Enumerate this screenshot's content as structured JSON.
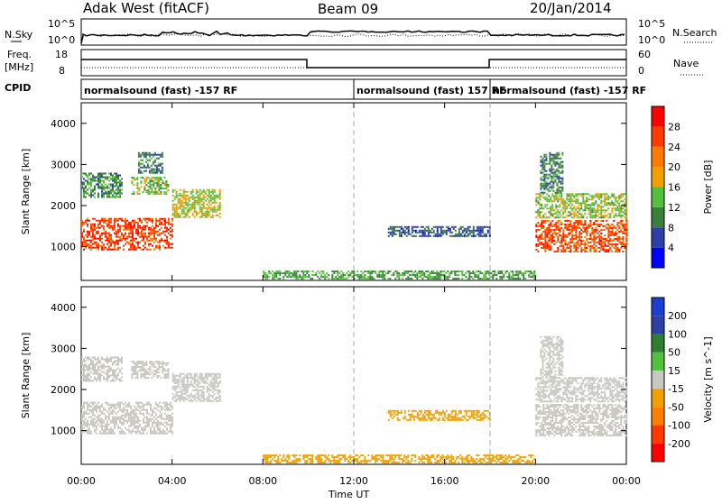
{
  "header": {
    "radar": "Adak West (fitACF)",
    "beam": "Beam 09",
    "date": "20/Jan/2014"
  },
  "top_panels": {
    "nsky_label": "N.Sky",
    "nsearch_label": "N.Search",
    "freq_label_1": "Freq.",
    "freq_label_2": "[MHz]",
    "nave_label": "Nave",
    "cpid_label": "CPID",
    "nsky_ticks": [
      "10^5",
      "10^0"
    ],
    "freq_ticks": [
      "18",
      "8"
    ],
    "nave_ticks": [
      "60",
      "0"
    ]
  },
  "cpid_segments": [
    {
      "label": "normalsound (fast) -157 RF",
      "start_hour": 0
    },
    {
      "label": "normalsound (fast) 157 RF",
      "start_hour": 12
    },
    {
      "label": "normalsound (fast) -157 RF",
      "start_hour": 18
    }
  ],
  "colors": {
    "power_scale": [
      "#0000ff",
      "#2e3fa8",
      "#3a7f3a",
      "#53c13d",
      "#f0a000",
      "#ff7a00",
      "#ff3a00",
      "#ff0000"
    ],
    "velocity_scale": [
      "#ff0000",
      "#ff3a00",
      "#ff8000",
      "#f0a000",
      "#c8c8c0",
      "#53c13d",
      "#2e7f30",
      "#2e3fa8",
      "#1a3fd0"
    ],
    "ground_scatter": "#c8c8c0"
  },
  "chart_data": [
    {
      "type": "heatmap",
      "name": "power",
      "ylabel": "Slant Range [km]",
      "xlabel": "Time UT",
      "xlim": [
        0,
        24
      ],
      "ylim": [
        180,
        4500
      ],
      "x_ticks": [
        "00:00",
        "04:00",
        "08:00",
        "12:00",
        "16:00",
        "20:00",
        "00:00"
      ],
      "x_tick_hours": [
        0,
        4,
        8,
        12,
        16,
        20,
        24
      ],
      "y_ticks": [
        1000,
        2000,
        3000,
        4000
      ],
      "colorbar_label": "Power [dB]",
      "colorbar_ticks": [
        4,
        8,
        12,
        16,
        20,
        24,
        28
      ],
      "colorbar_range": [
        0,
        32
      ],
      "dashed_vlines_hours": [
        12,
        18
      ],
      "regions": [
        {
          "t0": 0.0,
          "t1": 4.0,
          "r0": 950,
          "r1": 1700,
          "level": 26
        },
        {
          "t0": 0.0,
          "t1": 1.8,
          "r0": 2200,
          "r1": 2800,
          "level": 11
        },
        {
          "t0": 2.2,
          "t1": 3.8,
          "r0": 2300,
          "r1": 2700,
          "level": 14
        },
        {
          "t0": 4.0,
          "t1": 6.1,
          "r0": 1700,
          "r1": 2400,
          "level": 16
        },
        {
          "t0": 2.5,
          "t1": 3.6,
          "r0": 2800,
          "r1": 3300,
          "level": 9
        },
        {
          "t0": 13.5,
          "t1": 18.0,
          "r0": 1250,
          "r1": 1500,
          "level": 7
        },
        {
          "t0": 20.0,
          "t1": 24.0,
          "r0": 900,
          "r1": 1650,
          "level": 25
        },
        {
          "t0": 20.0,
          "t1": 24.0,
          "r0": 1700,
          "r1": 2300,
          "level": 15
        },
        {
          "t0": 20.2,
          "t1": 21.2,
          "r0": 2300,
          "r1": 3300,
          "level": 10
        },
        {
          "t0": 8.0,
          "t1": 20.0,
          "r0": 220,
          "r1": 420,
          "level": 12
        }
      ]
    },
    {
      "type": "heatmap",
      "name": "velocity",
      "ylabel": "Slant Range [km]",
      "xlabel": "Time UT",
      "xlim": [
        0,
        24
      ],
      "ylim": [
        180,
        4500
      ],
      "x_ticks": [
        "00:00",
        "04:00",
        "08:00",
        "12:00",
        "16:00",
        "20:00",
        "00:00"
      ],
      "x_tick_hours": [
        0,
        4,
        8,
        12,
        16,
        20,
        24
      ],
      "y_ticks": [
        1000,
        2000,
        3000,
        4000
      ],
      "colorbar_label": "Velocity [m s^-1]",
      "colorbar_ticks": [
        "200",
        "100",
        "50",
        "15",
        "-15",
        "-50",
        "-100",
        "-200"
      ],
      "dashed_vlines_hours": [
        12,
        18
      ],
      "regions": [
        {
          "t0": 0.0,
          "t1": 4.0,
          "r0": 950,
          "r1": 1700,
          "level": 0
        },
        {
          "t0": 0.0,
          "t1": 1.8,
          "r0": 2200,
          "r1": 2800,
          "level": 0
        },
        {
          "t0": 2.2,
          "t1": 3.8,
          "r0": 2300,
          "r1": 2700,
          "level": 0
        },
        {
          "t0": 4.0,
          "t1": 6.1,
          "r0": 1700,
          "r1": 2400,
          "level": 0
        },
        {
          "t0": 13.5,
          "t1": 18.0,
          "r0": 1250,
          "r1": 1500,
          "level": -40
        },
        {
          "t0": 20.0,
          "t1": 24.0,
          "r0": 900,
          "r1": 1650,
          "level": 0
        },
        {
          "t0": 20.0,
          "t1": 24.0,
          "r0": 1700,
          "r1": 2300,
          "level": 0
        },
        {
          "t0": 20.2,
          "t1": 21.2,
          "r0": 2300,
          "r1": 3300,
          "level": 0
        },
        {
          "t0": 8.0,
          "t1": 20.0,
          "r0": 220,
          "r1": 420,
          "level": -30
        }
      ]
    }
  ]
}
